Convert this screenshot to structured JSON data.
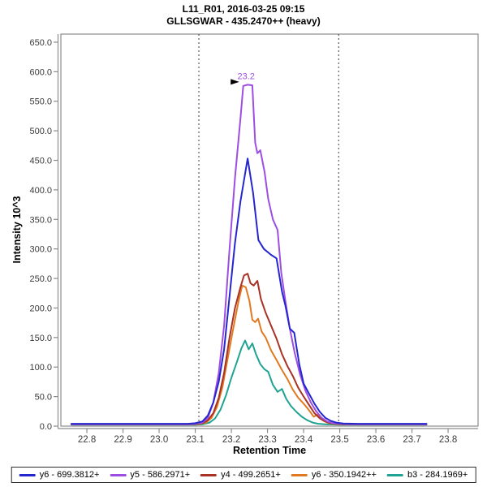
{
  "window": {
    "title_line1": "L11_R01, 2016-03-25 09:15",
    "title_line2": "GLLSGWAR - 435.2470++ (heavy)"
  },
  "axes": {
    "x_label": "Retention Time",
    "y_label": "Intensity 10^3"
  },
  "colors": {
    "frame": "#8c8c8c",
    "tick_text": "#3a3a3a",
    "boundary_line": "#3c3c3c",
    "annotation_arrow": "#000000",
    "legend_border": "#2b2b2b"
  },
  "chart_data": {
    "type": "line",
    "title": "L11_R01, 2016-03-25 09:15",
    "subtitle": "GLLSGWAR - 435.2470++ (heavy)",
    "xlabel": "Retention Time",
    "ylabel": "Intensity 10^3",
    "y_units": "10^3",
    "grid": false,
    "legend_position": "bottom",
    "xlim": [
      22.728,
      23.883
    ],
    "ylim": [
      0,
      663.7
    ],
    "x_ticks": [
      22.8,
      22.9,
      23.0,
      23.1,
      23.2,
      23.3,
      23.4,
      23.5,
      23.6,
      23.7,
      23.8
    ],
    "y_ticks": [
      0,
      50,
      100,
      150,
      200,
      250,
      300,
      350,
      400,
      450,
      500,
      550,
      600,
      650
    ],
    "peak_boundaries": [
      23.11,
      23.497
    ],
    "peak_annotation": {
      "text": "23.2",
      "x": 23.243,
      "y": 578,
      "color": "#9D4EE2"
    },
    "series": [
      {
        "name": "y6 - 699.3812+",
        "color": "#2626CF",
        "points": [
          [
            22.757,
            4
          ],
          [
            22.8,
            4
          ],
          [
            22.9,
            4
          ],
          [
            23.0,
            4
          ],
          [
            23.05,
            4
          ],
          [
            23.08,
            4
          ],
          [
            23.1,
            5
          ],
          [
            23.12,
            8
          ],
          [
            23.135,
            18
          ],
          [
            23.15,
            40
          ],
          [
            23.165,
            75
          ],
          [
            23.18,
            130
          ],
          [
            23.195,
            220
          ],
          [
            23.21,
            310
          ],
          [
            23.225,
            380
          ],
          [
            23.245,
            453
          ],
          [
            23.26,
            395
          ],
          [
            23.275,
            315
          ],
          [
            23.29,
            300
          ],
          [
            23.31,
            290
          ],
          [
            23.325,
            284
          ],
          [
            23.34,
            228
          ],
          [
            23.35,
            203
          ],
          [
            23.362,
            165
          ],
          [
            23.374,
            158
          ],
          [
            23.388,
            105
          ],
          [
            23.4,
            72
          ],
          [
            23.415,
            55
          ],
          [
            23.43,
            38
          ],
          [
            23.445,
            24
          ],
          [
            23.46,
            14
          ],
          [
            23.475,
            9
          ],
          [
            23.49,
            6
          ],
          [
            23.51,
            4.5
          ],
          [
            23.55,
            4
          ],
          [
            23.6,
            4
          ],
          [
            23.65,
            4
          ],
          [
            23.7,
            4
          ],
          [
            23.74,
            4
          ]
        ]
      },
      {
        "name": "y5 - 586.2971+",
        "color": "#9D4EE2",
        "points": [
          [
            22.757,
            3
          ],
          [
            22.85,
            3
          ],
          [
            22.95,
            3
          ],
          [
            23.05,
            3
          ],
          [
            23.08,
            3
          ],
          [
            23.1,
            4
          ],
          [
            23.12,
            6
          ],
          [
            23.135,
            14
          ],
          [
            23.15,
            40
          ],
          [
            23.165,
            90
          ],
          [
            23.18,
            170
          ],
          [
            23.195,
            300
          ],
          [
            23.21,
            420
          ],
          [
            23.225,
            520
          ],
          [
            23.233,
            576
          ],
          [
            23.245,
            578
          ],
          [
            23.258,
            577
          ],
          [
            23.266,
            480
          ],
          [
            23.272,
            462
          ],
          [
            23.28,
            467
          ],
          [
            23.292,
            430
          ],
          [
            23.302,
            385
          ],
          [
            23.315,
            350
          ],
          [
            23.328,
            332
          ],
          [
            23.338,
            260
          ],
          [
            23.35,
            210
          ],
          [
            23.362,
            165
          ],
          [
            23.375,
            125
          ],
          [
            23.39,
            88
          ],
          [
            23.405,
            60
          ],
          [
            23.42,
            40
          ],
          [
            23.435,
            25
          ],
          [
            23.45,
            14
          ],
          [
            23.465,
            8
          ],
          [
            23.48,
            5
          ],
          [
            23.5,
            4
          ],
          [
            23.52,
            3.5
          ],
          [
            23.56,
            3
          ],
          [
            23.62,
            3
          ],
          [
            23.68,
            3
          ],
          [
            23.74,
            3
          ]
        ]
      },
      {
        "name": "y4 - 499.2651+",
        "color": "#A93226",
        "points": [
          [
            22.757,
            3
          ],
          [
            23.0,
            3
          ],
          [
            23.08,
            3
          ],
          [
            23.1,
            3.5
          ],
          [
            23.12,
            5
          ],
          [
            23.135,
            10
          ],
          [
            23.15,
            22
          ],
          [
            23.165,
            48
          ],
          [
            23.18,
            90
          ],
          [
            23.195,
            150
          ],
          [
            23.21,
            200
          ],
          [
            23.225,
            235
          ],
          [
            23.235,
            255
          ],
          [
            23.245,
            258
          ],
          [
            23.253,
            242
          ],
          [
            23.262,
            238
          ],
          [
            23.272,
            246
          ],
          [
            23.282,
            215
          ],
          [
            23.295,
            192
          ],
          [
            23.31,
            170
          ],
          [
            23.325,
            148
          ],
          [
            23.34,
            122
          ],
          [
            23.355,
            102
          ],
          [
            23.37,
            85
          ],
          [
            23.385,
            65
          ],
          [
            23.4,
            50
          ],
          [
            23.415,
            36
          ],
          [
            23.43,
            22
          ],
          [
            23.445,
            13
          ],
          [
            23.46,
            8
          ],
          [
            23.475,
            5
          ],
          [
            23.49,
            4
          ],
          [
            23.51,
            3
          ],
          [
            23.56,
            3
          ],
          [
            23.62,
            3
          ],
          [
            23.7,
            3
          ],
          [
            23.74,
            3
          ]
        ]
      },
      {
        "name": "y6 - 350.1942++",
        "color": "#DF7A20",
        "points": [
          [
            22.757,
            3
          ],
          [
            23.0,
            3
          ],
          [
            23.09,
            3
          ],
          [
            23.11,
            3.5
          ],
          [
            23.13,
            6
          ],
          [
            23.145,
            14
          ],
          [
            23.16,
            32
          ],
          [
            23.175,
            65
          ],
          [
            23.19,
            115
          ],
          [
            23.205,
            165
          ],
          [
            23.22,
            212
          ],
          [
            23.23,
            238
          ],
          [
            23.24,
            235
          ],
          [
            23.25,
            212
          ],
          [
            23.258,
            180
          ],
          [
            23.266,
            176
          ],
          [
            23.274,
            182
          ],
          [
            23.284,
            160
          ],
          [
            23.295,
            150
          ],
          [
            23.31,
            128
          ],
          [
            23.325,
            112
          ],
          [
            23.34,
            95
          ],
          [
            23.355,
            80
          ],
          [
            23.37,
            62
          ],
          [
            23.385,
            48
          ],
          [
            23.4,
            38
          ],
          [
            23.415,
            27
          ],
          [
            23.428,
            16
          ],
          [
            23.44,
            20
          ],
          [
            23.452,
            10
          ],
          [
            23.465,
            6
          ],
          [
            23.48,
            4
          ],
          [
            23.5,
            3
          ],
          [
            23.56,
            3
          ],
          [
            23.64,
            3
          ],
          [
            23.74,
            3
          ]
        ]
      },
      {
        "name": "b3 - 284.1969+",
        "color": "#1FA392",
        "points": [
          [
            22.757,
            2.5
          ],
          [
            23.0,
            2.5
          ],
          [
            23.1,
            2.5
          ],
          [
            23.12,
            3
          ],
          [
            23.14,
            6
          ],
          [
            23.155,
            13
          ],
          [
            23.17,
            28
          ],
          [
            23.185,
            52
          ],
          [
            23.2,
            82
          ],
          [
            23.215,
            108
          ],
          [
            23.228,
            132
          ],
          [
            23.238,
            145
          ],
          [
            23.248,
            130
          ],
          [
            23.258,
            140
          ],
          [
            23.268,
            122
          ],
          [
            23.28,
            105
          ],
          [
            23.292,
            96
          ],
          [
            23.302,
            92
          ],
          [
            23.315,
            70
          ],
          [
            23.328,
            58
          ],
          [
            23.34,
            63
          ],
          [
            23.352,
            46
          ],
          [
            23.365,
            34
          ],
          [
            23.38,
            24
          ],
          [
            23.395,
            16
          ],
          [
            23.41,
            10
          ],
          [
            23.425,
            6
          ],
          [
            23.44,
            4
          ],
          [
            23.46,
            3
          ],
          [
            23.5,
            2.5
          ],
          [
            23.58,
            2.5
          ],
          [
            23.66,
            2.5
          ],
          [
            23.74,
            2.5
          ]
        ]
      }
    ]
  }
}
